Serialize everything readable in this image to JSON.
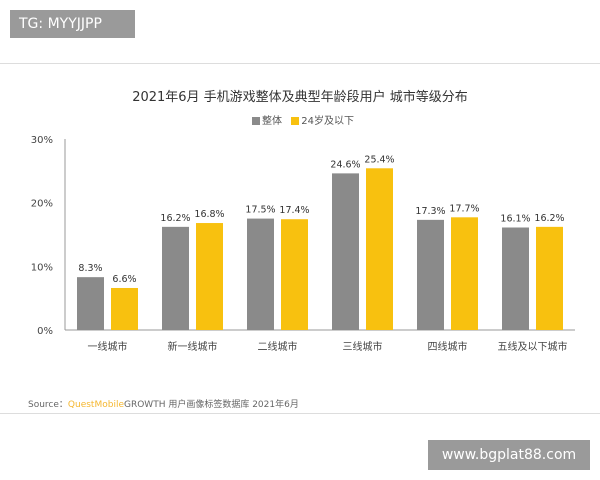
{
  "watermarks": {
    "top": "TG: MYYJJPP",
    "bottom": "www.bgplat88.com"
  },
  "chart_data": {
    "type": "bar",
    "title": "2021年6月 手机游戏整体及典型年龄段用户 城市等级分布",
    "categories": [
      "一线城市",
      "新一线城市",
      "二线城市",
      "三线城市",
      "四线城市",
      "五线及以下城市"
    ],
    "series": [
      {
        "name": "整体",
        "color": "#8a8a8a",
        "values": [
          8.3,
          16.2,
          17.5,
          24.6,
          17.3,
          16.1
        ]
      },
      {
        "name": "24岁及以下",
        "color": "#f8c10f",
        "values": [
          6.6,
          16.8,
          17.4,
          25.4,
          17.7,
          16.2
        ]
      }
    ],
    "ylim": [
      0,
      30
    ],
    "yticks": [
      "0%",
      "10%",
      "20%",
      "30%"
    ],
    "legend": "top-center",
    "grid": false
  },
  "source": {
    "prefix": "Source：",
    "brand": "QuestMobile",
    "rest": "GROWTH 用户画像标签数据库 2021年6月"
  }
}
